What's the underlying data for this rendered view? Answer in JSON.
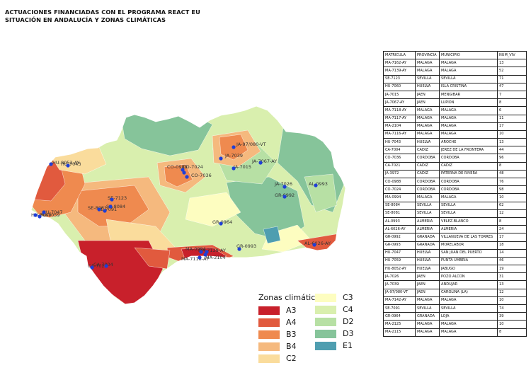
{
  "title": {
    "line1": "ACTUACIONES FINANCIADAS CON EL PROGRAMA REACT EU",
    "line2": "SITUACIÓN EN ANDALUCÍA Y ZONAS CLIMÁTICAS"
  },
  "colors": {
    "A3": "#c8202b",
    "A4": "#e15a3e",
    "B3": "#ef8a4f",
    "B4": "#f5b97e",
    "C2": "#fadc9c",
    "C3": "#fdfdc0",
    "C4": "#d9efae",
    "D2": "#b7e0a4",
    "D3": "#86c49a",
    "E1": "#4f9eb0",
    "marker": "#1f3fd6"
  },
  "legend": {
    "title": "Zonas climáticas",
    "items": [
      "A3",
      "A4",
      "B3",
      "B4",
      "C2",
      "C3",
      "C4",
      "D2",
      "D3",
      "E1"
    ]
  },
  "map_labels": [
    "HU-8052-AY",
    "HU-7043",
    "HU-7047",
    "HU-7059",
    "HU-7060",
    "SE-7123",
    "SE-8084",
    "SE-8081",
    "SE-7091",
    "CO-0988",
    "CO-7024",
    "CO-7036",
    "JA-7039",
    "JA-97/080-VT",
    "JA-7015",
    "JA-7067-AY",
    "JA-7026",
    "GR-0992",
    "GR-0964",
    "AL-0993",
    "AL-6026-AY",
    "GR-0993",
    "MA-0994",
    "MA-7139-AY",
    "MA-7118-AY",
    "MA-2104",
    "CA-7004",
    "CA-7021"
  ],
  "table": {
    "headers": [
      "MATRICULA",
      "PROVINCIA",
      "MUNICIPIO",
      "NUM_VIV"
    ],
    "rows": [
      [
        "MA-7162-AY",
        "MALAGA",
        "MALAGA",
        "13"
      ],
      [
        "MA-7139-AY",
        "MALAGA",
        "MALAGA",
        "52"
      ],
      [
        "SE-7123",
        "SEVILLA",
        "SEVILLA",
        "71"
      ],
      [
        "HU-7060",
        "HUELVA",
        "ISLA CRISTINA",
        "47"
      ],
      [
        "JA-7015",
        "JAEN",
        "MENGIBAR",
        "7"
      ],
      [
        "JA-7067-AY",
        "JAEN",
        "LUPION",
        "8"
      ],
      [
        "MA-7118-AY",
        "MALAGA",
        "MALAGA",
        "6"
      ],
      [
        "MA-7117-AY",
        "MALAGA",
        "MALAGA",
        "11"
      ],
      [
        "MA-2104",
        "MALAGA",
        "MALAGA",
        "17"
      ],
      [
        "MA-7116-AY",
        "MALAGA",
        "MALAGA",
        "10"
      ],
      [
        "HU-7043",
        "HUELVA",
        "AROCHE",
        "13"
      ],
      [
        "CA-7004",
        "CADIZ",
        "JEREZ DE LA FRONTERA",
        "44"
      ],
      [
        "CO-7036",
        "CORDOBA",
        "CORDOBA",
        "96"
      ],
      [
        "CA-7021",
        "CADIZ",
        "CADIZ",
        "8"
      ],
      [
        "JA-3972",
        "CADIZ",
        "PATERNA DE RIVERA",
        "48"
      ],
      [
        "CO-0988",
        "CORDOBA",
        "CORDOBA",
        "76"
      ],
      [
        "CO-7024",
        "CORDOBA",
        "CORDOBA",
        "98"
      ],
      [
        "MA-0994",
        "MALAGA",
        "MALAGA",
        "10"
      ],
      [
        "SE-8084",
        "SEVILLA",
        "SEVILLA",
        "62"
      ],
      [
        "SE-8081",
        "SEVILLA",
        "SEVILLA",
        "12"
      ],
      [
        "AL-0993",
        "ALMERIA",
        "VELEZ-BLANCO",
        "8"
      ],
      [
        "AL-6026-AY",
        "ALMERIA",
        "ALMERIA",
        "24"
      ],
      [
        "GR-0992",
        "GRANADA",
        "VILLANUEVA DE LAS TORRES",
        "17"
      ],
      [
        "GR-0993",
        "GRANADA",
        "MORELABOR",
        "18"
      ],
      [
        "HU-7047",
        "HUELVA",
        "SAN JUAN DEL PUERTO",
        "14"
      ],
      [
        "HU-7059",
        "HUELVA",
        "PUNTA UMBRIA",
        "46"
      ],
      [
        "HU-8052-AY",
        "HUELVA",
        "JABUGO",
        "19"
      ],
      [
        "JA-7026",
        "JAEN",
        "POZO ALCON",
        "31"
      ],
      [
        "JA-7039",
        "JAEN",
        "ANDUJAR",
        "13"
      ],
      [
        "JA-97/080-VT",
        "JAEN",
        "CAROLINA (LA)",
        "12"
      ],
      [
        "MA-7142-AY",
        "MALAGA",
        "MALAGA",
        "10"
      ],
      [
        "SE-7091",
        "SEVILLA",
        "SEVILLA",
        "74"
      ],
      [
        "GR-0964",
        "GRANADA",
        "LOJA",
        "39"
      ],
      [
        "MA-2125",
        "MALAGA",
        "MALAGA",
        "10"
      ],
      [
        "MA-2115",
        "MALAGA",
        "MALAGA",
        "8"
      ]
    ]
  }
}
